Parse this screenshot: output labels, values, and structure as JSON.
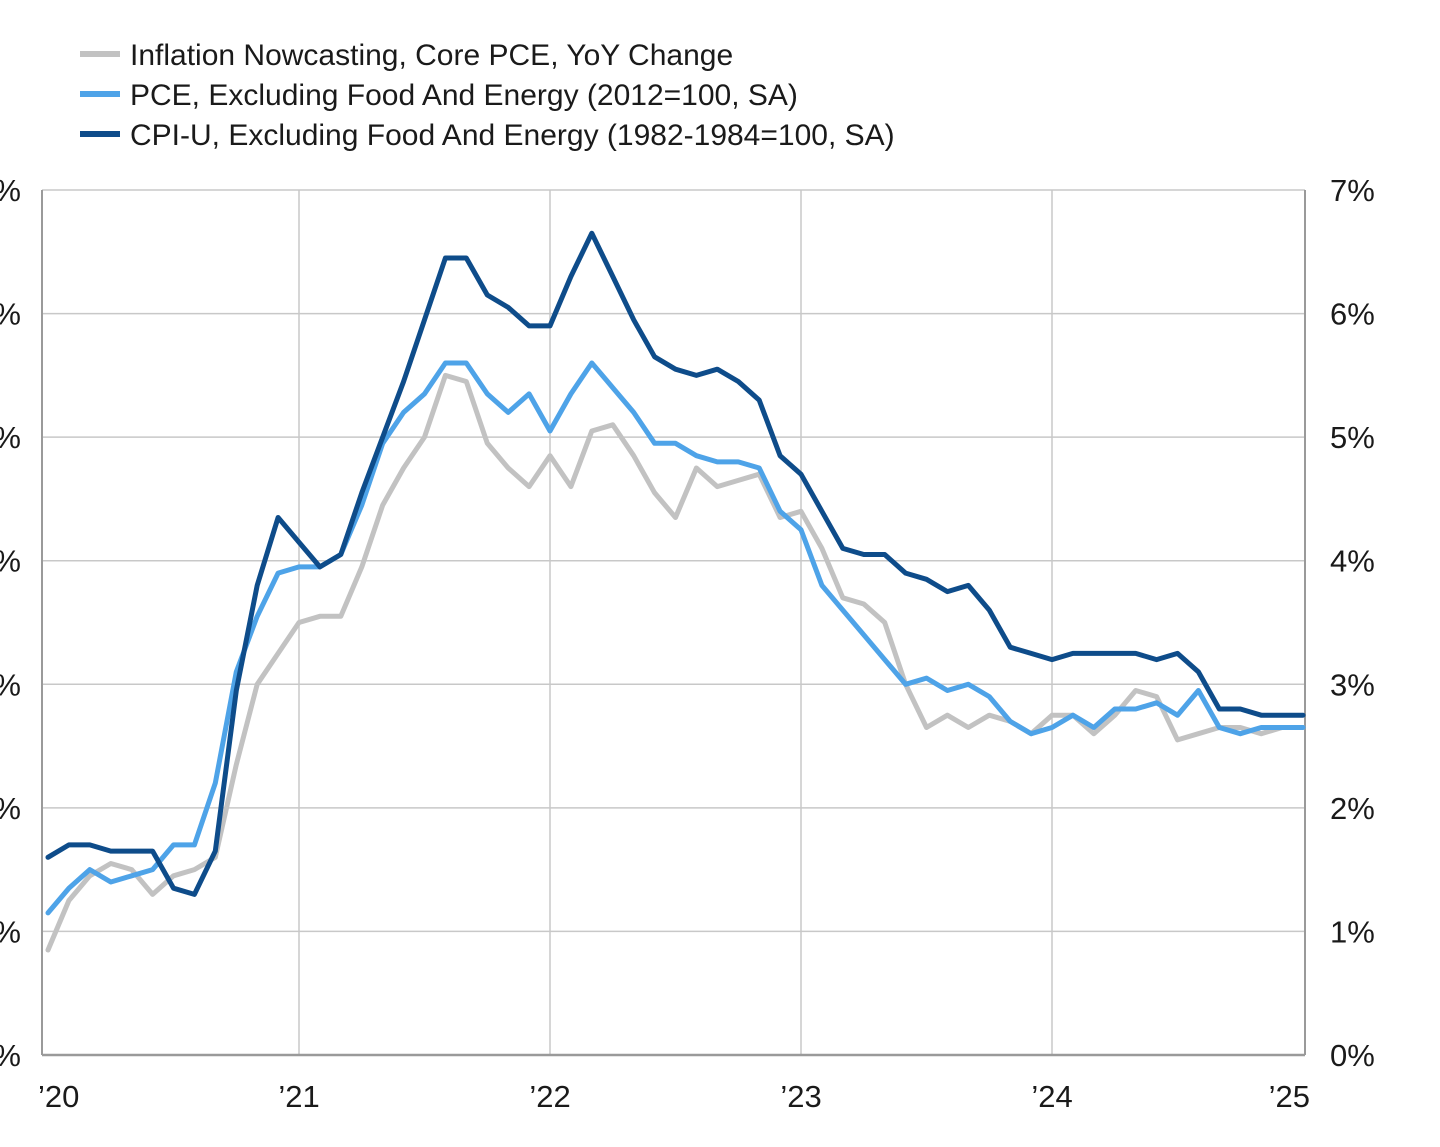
{
  "chart_data": {
    "type": "line",
    "title": "",
    "xlabel": "",
    "ylabel": "",
    "x_ticks": [
      "’20",
      "’21",
      "’22",
      "’23",
      "’24",
      "’25"
    ],
    "y_left_ticks": [
      "%",
      "%",
      "%",
      "%",
      "%",
      "%",
      "%",
      "%"
    ],
    "y_right_ticks": [
      "0%",
      "1%",
      "2%",
      "3%",
      "4%",
      "5%",
      "6%",
      "7%"
    ],
    "ylim": [
      0,
      7
    ],
    "grid": true,
    "legend_position": "top-left",
    "x": [
      "2020-01",
      "2020-02",
      "2020-03",
      "2020-04",
      "2020-05",
      "2020-06",
      "2020-07",
      "2020-08",
      "2020-09",
      "2020-10",
      "2020-11",
      "2020-12",
      "2021-01",
      "2021-02",
      "2021-03",
      "2021-04",
      "2021-05",
      "2021-06",
      "2021-07",
      "2021-08",
      "2021-09",
      "2021-10",
      "2021-11",
      "2021-12",
      "2022-01",
      "2022-02",
      "2022-03",
      "2022-04",
      "2022-05",
      "2022-06",
      "2022-07",
      "2022-08",
      "2022-09",
      "2022-10",
      "2022-11",
      "2022-12",
      "2023-01",
      "2023-02",
      "2023-03",
      "2023-04",
      "2023-05",
      "2023-06",
      "2023-07",
      "2023-08",
      "2023-09",
      "2023-10",
      "2023-11",
      "2023-12",
      "2024-01",
      "2024-02",
      "2024-03",
      "2024-04",
      "2024-05",
      "2024-06",
      "2024-07",
      "2024-08",
      "2024-09",
      "2024-10",
      "2024-11",
      "2024-12",
      "2025-01"
    ],
    "series": [
      {
        "name": "Inflation Nowcasting, Core PCE, YoY Change",
        "color": "#c2c2c2",
        "values": [
          0.85,
          1.25,
          1.45,
          1.55,
          1.5,
          1.3,
          1.45,
          1.5,
          1.6,
          2.35,
          3.0,
          3.25,
          3.5,
          3.55,
          3.55,
          3.95,
          4.45,
          4.75,
          5.0,
          5.5,
          5.45,
          4.95,
          4.75,
          4.6,
          4.85,
          4.6,
          5.05,
          5.1,
          4.85,
          4.55,
          4.35,
          4.75,
          4.6,
          4.65,
          4.7,
          4.35,
          4.4,
          4.1,
          3.7,
          3.65,
          3.5,
          3.0,
          2.65,
          2.75,
          2.65,
          2.75,
          2.7,
          2.6,
          2.75,
          2.75,
          2.6,
          2.75,
          2.95,
          2.9,
          2.55,
          2.6,
          2.65,
          2.65,
          2.6,
          2.65,
          2.65
        ]
      },
      {
        "name": "PCE, Excluding Food And Energy (2012=100, SA)",
        "color": "#4ea3e8",
        "values": [
          1.15,
          1.35,
          1.5,
          1.4,
          1.45,
          1.5,
          1.7,
          1.7,
          2.2,
          3.1,
          3.55,
          3.9,
          3.95,
          3.95,
          4.05,
          4.45,
          4.95,
          5.2,
          5.35,
          5.6,
          5.6,
          5.35,
          5.2,
          5.35,
          5.05,
          5.35,
          5.6,
          5.4,
          5.2,
          4.95,
          4.95,
          4.85,
          4.8,
          4.8,
          4.75,
          4.4,
          4.25,
          3.8,
          3.6,
          3.4,
          3.2,
          3.0,
          3.05,
          2.95,
          3.0,
          2.9,
          2.7,
          2.6,
          2.65,
          2.75,
          2.65,
          2.8,
          2.8,
          2.85,
          2.75,
          2.95,
          2.65,
          2.6,
          2.65,
          2.65,
          2.65
        ]
      },
      {
        "name": "CPI-U, Excluding Food And Energy (1982-1984=100, SA)",
        "color": "#0e4c8a",
        "values": [
          1.6,
          1.7,
          1.7,
          1.65,
          1.65,
          1.65,
          1.35,
          1.3,
          1.65,
          2.95,
          3.8,
          4.35,
          4.15,
          3.95,
          4.05,
          4.55,
          5.0,
          5.45,
          5.95,
          6.45,
          6.45,
          6.15,
          6.05,
          5.9,
          5.9,
          6.3,
          6.65,
          6.3,
          5.95,
          5.65,
          5.55,
          5.5,
          5.55,
          5.45,
          5.3,
          4.85,
          4.7,
          4.4,
          4.1,
          4.05,
          4.05,
          3.9,
          3.85,
          3.75,
          3.8,
          3.6,
          3.3,
          3.25,
          3.2,
          3.25,
          3.25,
          3.25,
          3.25,
          3.2,
          3.25,
          3.1,
          2.8,
          2.8,
          2.75,
          2.75,
          2.75
        ]
      }
    ]
  }
}
